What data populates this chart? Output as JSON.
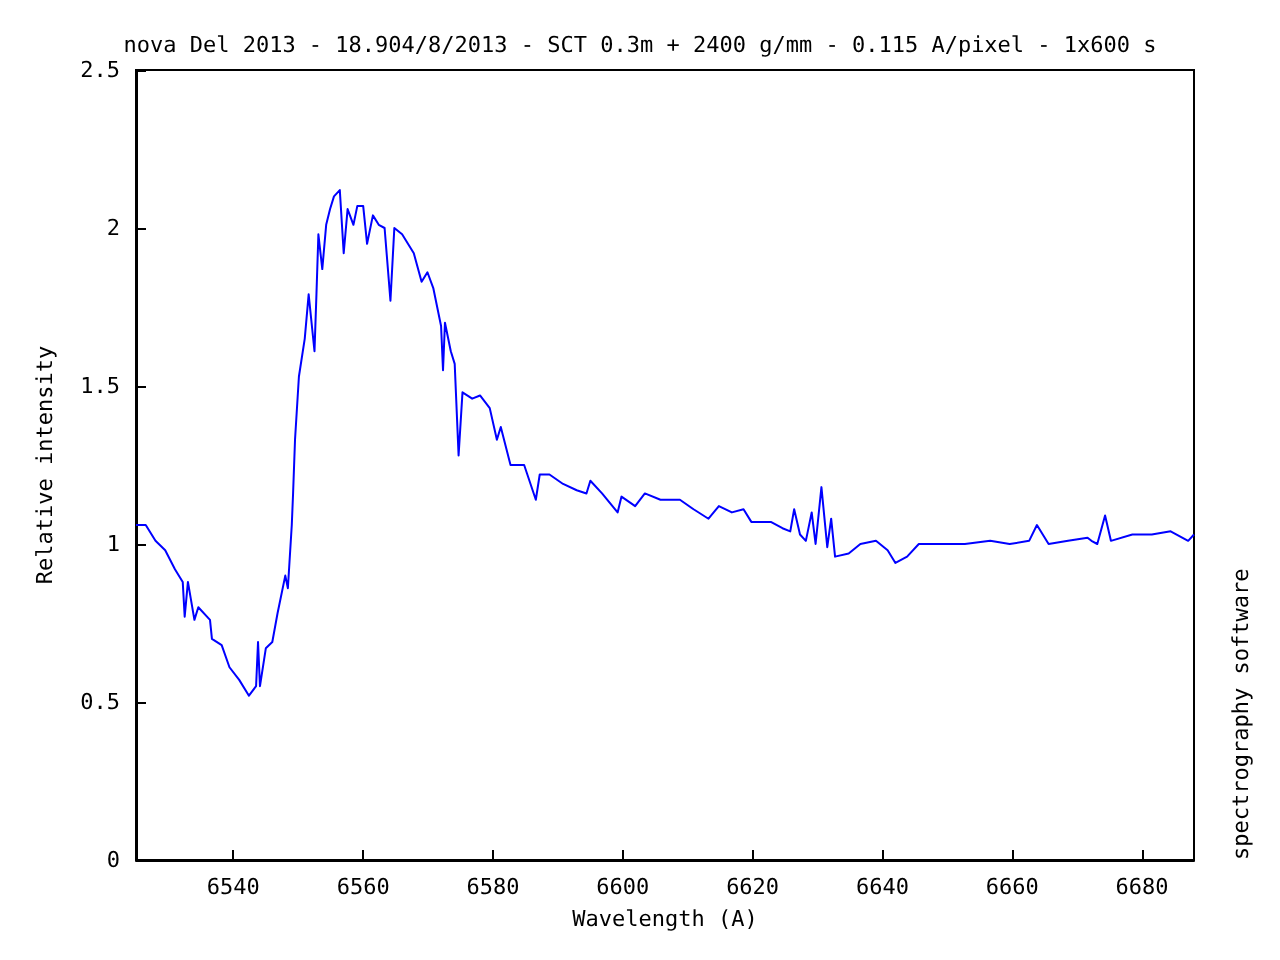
{
  "chart_data": {
    "type": "line",
    "title": "nova Del 2013 - 18.904/8/2013 - SCT 0.3m + 2400 g/mm - 0.115 A/pixel - 1x600 s",
    "xlabel": "Wavelength (A)",
    "ylabel": "Relative intensity",
    "annotations": [
      "spectrography software"
    ],
    "xlim": [
      6525,
      6688
    ],
    "xticks": [
      6540,
      6560,
      6580,
      6600,
      6620,
      6640,
      6660,
      6680
    ],
    "ylim": [
      0,
      2.5
    ],
    "yticks": [
      0,
      0.5,
      1,
      1.5,
      2,
      2.5
    ],
    "grid": false,
    "marker": "none",
    "line_style": "solid",
    "series": [
      {
        "color": "#0000ff",
        "x": [
          6525,
          6526.5,
          6528,
          6529.5,
          6531,
          6532.2,
          6532.5,
          6533,
          6534,
          6534.6,
          6536.4,
          6536.7,
          6538.2,
          6539.4,
          6540.9,
          6542.4,
          6543.5,
          6543.8,
          6544.1,
          6545,
          6546,
          6546.8,
          6548,
          6548.4,
          6549,
          6549.2,
          6549.5,
          6550.1,
          6551,
          6551.6,
          6552.5,
          6552.8,
          6553.1,
          6553.7,
          6554.3,
          6554.9,
          6555.5,
          6556.4,
          6557,
          6557.6,
          6558.5,
          6559.1,
          6560,
          6560.6,
          6561.5,
          6562.4,
          6563.3,
          6564.2,
          6564.8,
          6566,
          6566.9,
          6567.8,
          6569,
          6569.9,
          6570.8,
          6572,
          6572.3,
          6572.6,
          6573.5,
          6574.1,
          6574.7,
          6575.3,
          6576.8,
          6578,
          6579.5,
          6580.6,
          6581.2,
          6582.7,
          6584.8,
          6586.6,
          6587.2,
          6588.7,
          6590.8,
          6592.9,
          6594.4,
          6595,
          6596.8,
          6599.2,
          6599.8,
          6601.9,
          6603.4,
          6605.8,
          6608.8,
          6610.9,
          6613.2,
          6614.8,
          6616.8,
          6618.6,
          6619.8,
          6622.8,
          6624.6,
          6625.8,
          6626.4,
          6627.3,
          6628.2,
          6629.1,
          6629.7,
          6630.6,
          6631.5,
          6632.1,
          6632.7,
          6634.8,
          6636.6,
          6639,
          6640.8,
          6642,
          6643.8,
          6645.6,
          6648.5,
          6652.7,
          6656.6,
          6659.6,
          6662.6,
          6663.8,
          6665.6,
          6668.6,
          6671.6,
          6672.2,
          6673.1,
          6674.3,
          6675.2,
          6678.5,
          6681.5,
          6684.4,
          6687.1,
          6688
        ],
        "values": [
          1.06,
          1.06,
          1.01,
          0.98,
          0.92,
          0.88,
          0.77,
          0.88,
          0.76,
          0.8,
          0.76,
          0.7,
          0.68,
          0.61,
          0.57,
          0.52,
          0.55,
          0.69,
          0.55,
          0.67,
          0.69,
          0.78,
          0.9,
          0.86,
          1.06,
          1.16,
          1.33,
          1.53,
          1.65,
          1.79,
          1.61,
          1.79,
          1.98,
          1.87,
          2.01,
          2.06,
          2.1,
          2.12,
          1.92,
          2.06,
          2.01,
          2.07,
          2.07,
          1.95,
          2.04,
          2.01,
          2,
          1.77,
          2,
          1.98,
          1.95,
          1.92,
          1.83,
          1.86,
          1.81,
          1.69,
          1.55,
          1.7,
          1.61,
          1.57,
          1.28,
          1.48,
          1.46,
          1.47,
          1.43,
          1.33,
          1.37,
          1.25,
          1.25,
          1.14,
          1.22,
          1.22,
          1.19,
          1.17,
          1.16,
          1.2,
          1.16,
          1.1,
          1.15,
          1.12,
          1.16,
          1.14,
          1.14,
          1.11,
          1.08,
          1.12,
          1.1,
          1.11,
          1.07,
          1.07,
          1.05,
          1.04,
          1.11,
          1.03,
          1.01,
          1.1,
          1,
          1.18,
          0.99,
          1.08,
          0.96,
          0.97,
          1,
          1.01,
          0.98,
          0.94,
          0.96,
          1,
          1,
          1,
          1.01,
          1,
          1.01,
          1.06,
          1,
          1.01,
          1.02,
          1.01,
          1,
          1.09,
          1.01,
          1.03,
          1.03,
          1.04,
          1.01,
          1.03
        ]
      }
    ]
  }
}
